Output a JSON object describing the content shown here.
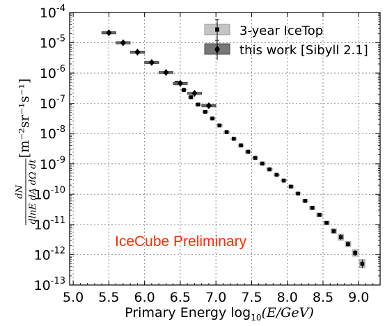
{
  "chart_data": {
    "type": "scatter",
    "xlabel_prefix": "Primary Energy log",
    "xlabel_sub": "10",
    "xlabel_suffix": "(E/GeV)",
    "ylabel_frac_num": "dN",
    "ylabel_frac_den": "dlnE dA dΩ dt",
    "ylabel_units": "[m⁻²sr⁻¹s⁻¹]",
    "xlim": [
      4.95,
      9.3
    ],
    "ylim_log10": [
      -13,
      -4
    ],
    "log_y": true,
    "grid": true,
    "x_ticks": [
      "5.0",
      "5.5",
      "6.0",
      "6.5",
      "7.0",
      "7.5",
      "8.0",
      "8.5",
      "9.0"
    ],
    "y_tick_exponents": [
      "-13",
      "-12",
      "-11",
      "-10",
      "-9",
      "-8",
      "-7",
      "-6",
      "-5",
      "-4"
    ],
    "y_tick_base": "10",
    "legend_position": "top-right",
    "annotation": "IceCube Preliminary",
    "annotation_color": "#ff2a00",
    "series": [
      {
        "name": "3-year IceTop",
        "marker": "square",
        "color": "#000000",
        "box_color": "#bbbbbb",
        "x": [
          6.45,
          6.55,
          6.65,
          6.75,
          6.85,
          6.95,
          7.05,
          7.15,
          7.25,
          7.35,
          7.45,
          7.55,
          7.65,
          7.75,
          7.85,
          7.95,
          8.05,
          8.15,
          8.25,
          8.35,
          8.45,
          8.55,
          8.65,
          8.75,
          8.85,
          8.95,
          9.05
        ],
        "log10_y": [
          -6.33,
          -6.56,
          -6.8,
          -7.04,
          -7.28,
          -7.5,
          -7.73,
          -7.95,
          -8.17,
          -8.39,
          -8.6,
          -8.8,
          -8.99,
          -9.18,
          -9.36,
          -9.55,
          -9.75,
          -9.98,
          -10.22,
          -10.45,
          -10.68,
          -10.95,
          -11.22,
          -11.42,
          -11.65,
          -11.94,
          -12.3
        ],
        "y_err_log10": [
          0.03,
          0.03,
          0.03,
          0.03,
          0.03,
          0.03,
          0.03,
          0.03,
          0.03,
          0.03,
          0.03,
          0.03,
          0.03,
          0.03,
          0.03,
          0.03,
          0.03,
          0.03,
          0.03,
          0.03,
          0.05,
          0.05,
          0.06,
          0.1,
          0.08,
          0.1,
          0.14
        ],
        "sys_box_log10": [
          0.03,
          0.03,
          0.03,
          0.03,
          0.03,
          0.03,
          0.03,
          0.03,
          0.03,
          0.03,
          0.03,
          0.03,
          0.03,
          0.03,
          0.03,
          0.03,
          0.04,
          0.04,
          0.04,
          0.05,
          0.06,
          0.06,
          0.08,
          0.1,
          0.09,
          0.11,
          0.14
        ]
      },
      {
        "name": "this work [Sibyll 2.1]",
        "marker": "diamond",
        "color": "#000000",
        "box_color": "#666666",
        "x": [
          5.5,
          5.7,
          5.9,
          6.1,
          6.3,
          6.5,
          6.7,
          6.9
        ],
        "x_halfwidth": [
          0.1,
          0.1,
          0.1,
          0.1,
          0.1,
          0.1,
          0.1,
          0.1
        ],
        "log10_y": [
          -4.67,
          -5.0,
          -5.31,
          -5.65,
          -5.98,
          -6.34,
          -6.67,
          -7.08
        ],
        "y_err_log10": [
          0.06,
          0.05,
          0.04,
          0.04,
          0.04,
          0.04,
          0.04,
          0.04
        ],
        "sys_box_log10": [
          0.04,
          0.04,
          0.04,
          0.04,
          0.04,
          0.04,
          0.04,
          0.04
        ]
      }
    ]
  }
}
